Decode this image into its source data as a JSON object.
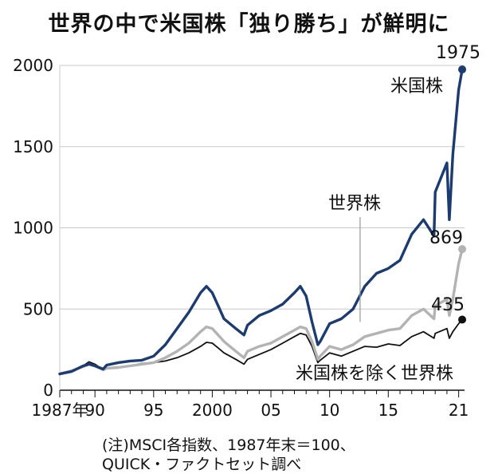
{
  "chart_data": {
    "type": "line",
    "title": "世界の中で米国株「独り勝ち」が鮮明に",
    "xlabel": "",
    "ylabel": "",
    "ylim": [
      0,
      2000
    ],
    "xlim": [
      1987,
      2021.5
    ],
    "y_ticks": [
      {
        "value": 0,
        "label": "0"
      },
      {
        "value": 500,
        "label": "500"
      },
      {
        "value": 1000,
        "label": "1000"
      },
      {
        "value": 1500,
        "label": "1500"
      },
      {
        "value": 2000,
        "label": "2000"
      }
    ],
    "x_ticks": [
      {
        "value": 1987,
        "label": "1987年"
      },
      {
        "value": 1990,
        "label": "90"
      },
      {
        "value": 1995,
        "label": "95"
      },
      {
        "value": 2000,
        "label": "2000"
      },
      {
        "value": 2005,
        "label": "05"
      },
      {
        "value": 2010,
        "label": "10"
      },
      {
        "value": 2015,
        "label": "15"
      },
      {
        "value": 2021,
        "label": "21"
      }
    ],
    "grid": true,
    "legend": "inline labels",
    "series": [
      {
        "name": "米国株を除く世界株",
        "color": "#111111",
        "end_label": "435",
        "x": [
          1987,
          1988,
          1989,
          1989.5,
          1990,
          1990.7,
          1991,
          1992,
          1993,
          1994,
          1995,
          1996,
          1997,
          1998,
          1999,
          1999.5,
          2000,
          2000.5,
          2001,
          2002,
          2002.7,
          2003,
          2004,
          2005,
          2006,
          2007,
          2007.5,
          2008,
          2008.5,
          2009,
          2009.2,
          2010,
          2011,
          2012,
          2013,
          2014,
          2015,
          2016,
          2017,
          2018,
          2018.9,
          2019,
          2020,
          2020.2,
          2020.5,
          2021,
          2021.3
        ],
        "y": [
          100,
          120,
          150,
          175,
          160,
          125,
          135,
          140,
          150,
          165,
          170,
          180,
          200,
          230,
          270,
          295,
          290,
          260,
          230,
          190,
          160,
          190,
          220,
          250,
          290,
          330,
          350,
          340,
          270,
          170,
          185,
          230,
          210,
          240,
          270,
          265,
          285,
          275,
          330,
          360,
          320,
          350,
          380,
          320,
          360,
          410,
          435
        ]
      },
      {
        "name": "世界株",
        "color": "#b3b3b3",
        "end_label": "869",
        "x": [
          1987,
          1988,
          1989,
          1989.5,
          1990,
          1990.7,
          1991,
          1992,
          1993,
          1994,
          1995,
          1996,
          1997,
          1998,
          1999,
          1999.5,
          2000,
          2000.5,
          2001,
          2002,
          2002.7,
          2003,
          2004,
          2005,
          2006,
          2007,
          2007.5,
          2008,
          2008.5,
          2009,
          2009.2,
          2010,
          2011,
          2012,
          2013,
          2014,
          2015,
          2016,
          2017,
          2018,
          2018.9,
          2019,
          2020,
          2020.2,
          2020.5,
          2021,
          2021.3
        ],
        "y": [
          100,
          120,
          145,
          160,
          150,
          125,
          135,
          140,
          150,
          160,
          170,
          200,
          240,
          290,
          360,
          390,
          380,
          340,
          300,
          240,
          200,
          240,
          270,
          290,
          330,
          370,
          390,
          380,
          300,
          190,
          210,
          270,
          250,
          280,
          330,
          350,
          370,
          380,
          460,
          500,
          440,
          520,
          560,
          460,
          560,
          780,
          869
        ]
      },
      {
        "name": "米国株",
        "color": "#1c3b70",
        "end_label": "1975",
        "x": [
          1987,
          1988,
          1989,
          1989.5,
          1990,
          1990.7,
          1991,
          1992,
          1993,
          1994,
          1995,
          1996,
          1997,
          1998,
          1999,
          1999.5,
          2000,
          2000.5,
          2001,
          2002,
          2002.7,
          2003,
          2004,
          2005,
          2006,
          2007,
          2007.5,
          2008,
          2008.5,
          2009,
          2009.2,
          2010,
          2011,
          2012,
          2013,
          2014,
          2015,
          2016,
          2017,
          2018,
          2018.9,
          2019,
          2020,
          2020.2,
          2020.5,
          2021,
          2021.3
        ],
        "y": [
          100,
          115,
          150,
          160,
          150,
          130,
          155,
          170,
          180,
          185,
          210,
          280,
          380,
          480,
          600,
          640,
          600,
          520,
          440,
          380,
          340,
          400,
          460,
          490,
          530,
          600,
          640,
          580,
          420,
          280,
          300,
          410,
          440,
          500,
          640,
          720,
          750,
          800,
          960,
          1050,
          950,
          1220,
          1400,
          1050,
          1450,
          1850,
          1975
        ]
      }
    ],
    "annotations": [
      {
        "text": "米国株",
        "series": "米国株"
      },
      {
        "text": "世界株",
        "series": "世界株"
      },
      {
        "text": "米国株を除く世界株",
        "series": "米国株を除く世界株"
      }
    ],
    "notes": [
      "(注)MSCI各指数、1987年末＝100、",
      "QUICK・ファクトセット調べ"
    ]
  }
}
